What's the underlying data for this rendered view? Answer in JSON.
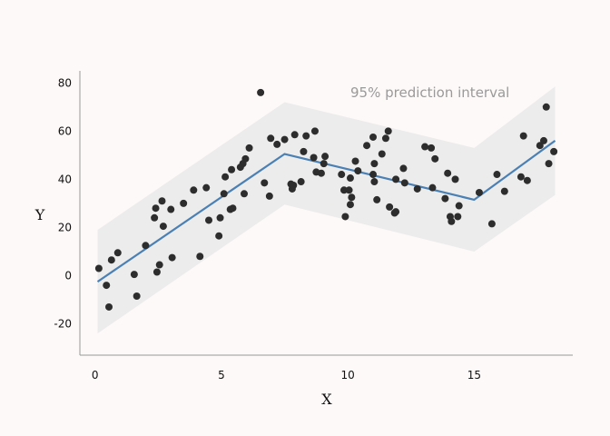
{
  "chart_data": {
    "type": "scatter",
    "title": "",
    "xlabel": "X",
    "ylabel": "Y",
    "xlim": [
      -0.6,
      18.9
    ],
    "ylim": [
      -33,
      85
    ],
    "x_ticks": [
      0,
      5,
      10,
      15
    ],
    "y_ticks": [
      -20,
      0,
      20,
      40,
      60,
      80
    ],
    "x_tick_labels": [
      "0",
      "5",
      "10",
      "15"
    ],
    "y_tick_labels": [
      "-20",
      "0",
      "20",
      "40",
      "60",
      "80"
    ],
    "grid": false,
    "legend": "none",
    "annotation": "95% prediction interval",
    "colors": {
      "points": "#2d2d2d",
      "fit_line": "#4a80b4",
      "band": "#ececec",
      "axis": "#999999",
      "background": "#fdf9f8"
    },
    "fit_line": {
      "x": [
        0.1,
        7.5,
        15.0,
        18.2
      ],
      "y": [
        -2.5,
        50.5,
        31.5,
        56.0
      ]
    },
    "prediction_band": {
      "x": [
        0.1,
        7.5,
        15.0,
        18.2
      ],
      "upper": [
        19.0,
        72.0,
        53.0,
        78.5
      ],
      "lower": [
        -24.0,
        29.5,
        10.0,
        33.5
      ]
    },
    "points": [
      [
        0.15,
        3.0
      ],
      [
        0.45,
        -4.0
      ],
      [
        0.55,
        -13.0
      ],
      [
        0.65,
        6.5
      ],
      [
        0.9,
        9.5
      ],
      [
        1.55,
        0.5
      ],
      [
        1.65,
        -8.5
      ],
      [
        2.0,
        12.5
      ],
      [
        2.35,
        24.0
      ],
      [
        2.4,
        28.0
      ],
      [
        2.45,
        1.5
      ],
      [
        2.55,
        4.5
      ],
      [
        2.65,
        31.0
      ],
      [
        2.7,
        20.5
      ],
      [
        3.0,
        27.5
      ],
      [
        3.05,
        7.5
      ],
      [
        3.5,
        30.0
      ],
      [
        3.9,
        35.5
      ],
      [
        4.15,
        8.0
      ],
      [
        4.4,
        36.5
      ],
      [
        4.5,
        23.0
      ],
      [
        4.9,
        16.5
      ],
      [
        4.95,
        24.0
      ],
      [
        5.1,
        34.0
      ],
      [
        5.15,
        41.0
      ],
      [
        5.35,
        27.5
      ],
      [
        5.4,
        44.0
      ],
      [
        5.45,
        28.0
      ],
      [
        5.75,
        45.0
      ],
      [
        5.85,
        46.5
      ],
      [
        5.9,
        34.0
      ],
      [
        5.95,
        48.5
      ],
      [
        6.1,
        53.0
      ],
      [
        6.55,
        76.0
      ],
      [
        6.7,
        38.5
      ],
      [
        6.9,
        33.0
      ],
      [
        6.95,
        57.0
      ],
      [
        7.2,
        54.5
      ],
      [
        7.5,
        56.5
      ],
      [
        7.75,
        38.0
      ],
      [
        7.8,
        36.0
      ],
      [
        7.9,
        58.5
      ],
      [
        7.85,
        37.5
      ],
      [
        8.15,
        39.0
      ],
      [
        8.25,
        51.5
      ],
      [
        8.35,
        58.0
      ],
      [
        8.65,
        49.0
      ],
      [
        8.7,
        60.0
      ],
      [
        8.75,
        43.0
      ],
      [
        8.95,
        42.5
      ],
      [
        9.1,
        49.5
      ],
      [
        9.05,
        46.5
      ],
      [
        9.75,
        42.0
      ],
      [
        9.85,
        35.5
      ],
      [
        9.9,
        24.5
      ],
      [
        10.05,
        35.5
      ],
      [
        10.1,
        29.5
      ],
      [
        10.15,
        32.5
      ],
      [
        10.1,
        40.5
      ],
      [
        10.3,
        47.5
      ],
      [
        10.4,
        43.5
      ],
      [
        10.75,
        54.0
      ],
      [
        11.0,
        57.5
      ],
      [
        11.05,
        46.5
      ],
      [
        11.0,
        42.0
      ],
      [
        11.05,
        39.0
      ],
      [
        11.15,
        31.5
      ],
      [
        11.35,
        50.5
      ],
      [
        11.5,
        57.0
      ],
      [
        11.6,
        60.0
      ],
      [
        11.65,
        28.5
      ],
      [
        11.9,
        40.0
      ],
      [
        11.85,
        26.0
      ],
      [
        11.9,
        26.5
      ],
      [
        12.2,
        44.5
      ],
      [
        12.25,
        38.5
      ],
      [
        12.75,
        36.0
      ],
      [
        13.05,
        53.5
      ],
      [
        13.3,
        53.0
      ],
      [
        13.35,
        36.5
      ],
      [
        13.45,
        48.5
      ],
      [
        13.85,
        32.0
      ],
      [
        13.95,
        42.5
      ],
      [
        14.05,
        24.5
      ],
      [
        14.1,
        22.5
      ],
      [
        14.25,
        40.0
      ],
      [
        14.35,
        24.5
      ],
      [
        14.4,
        29.0
      ],
      [
        15.2,
        34.5
      ],
      [
        15.7,
        21.5
      ],
      [
        15.9,
        42.0
      ],
      [
        16.2,
        35.0
      ],
      [
        16.85,
        41.0
      ],
      [
        16.95,
        58.0
      ],
      [
        17.1,
        39.5
      ],
      [
        17.6,
        54.0
      ],
      [
        17.75,
        56.0
      ],
      [
        17.85,
        70.0
      ],
      [
        17.95,
        46.5
      ],
      [
        18.15,
        51.5
      ]
    ]
  }
}
